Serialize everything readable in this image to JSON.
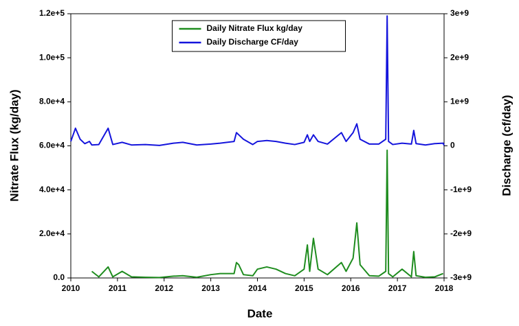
{
  "chart_data": {
    "type": "line",
    "xlabel": "Date",
    "ylabel": "Nitrate Flux (kg/day)",
    "y2label": "Discharge (cf/day)",
    "xlim": [
      2010,
      2018
    ],
    "xticks": [
      2010,
      2011,
      2012,
      2013,
      2014,
      2015,
      2016,
      2017,
      2018
    ],
    "ylim": [
      0,
      120000
    ],
    "yticks": [
      {
        "value": 0,
        "label": "0.0"
      },
      {
        "value": 20000,
        "label": "2.0e+4"
      },
      {
        "value": 40000,
        "label": "4.0e+4"
      },
      {
        "value": 60000,
        "label": "6.0e+4"
      },
      {
        "value": 80000,
        "label": "8.0e+4"
      },
      {
        "value": 100000,
        "label": "1.0e+5"
      },
      {
        "value": 120000,
        "label": "1.2e+5"
      }
    ],
    "y2lim": [
      -3000000000,
      3000000000
    ],
    "y2ticks": [
      {
        "value": -3000000000,
        "label": "-3e+9"
      },
      {
        "value": -2000000000,
        "label": "-2e+9"
      },
      {
        "value": -1000000000,
        "label": "-1e+9"
      },
      0,
      {
        "value": 1000000000,
        "label": "1e+9"
      },
      {
        "value": 2000000000,
        "label": "2e+9"
      },
      {
        "value": 3000000000,
        "label": "3e+9"
      }
    ],
    "legend": "upper center",
    "x": [
      2010.0,
      2010.1,
      2010.2,
      2010.3,
      2010.4,
      2010.45,
      2010.6,
      2010.8,
      2010.9,
      2011.1,
      2011.3,
      2011.6,
      2011.9,
      2012.2,
      2012.4,
      2012.7,
      2013.0,
      2013.2,
      2013.5,
      2013.55,
      2013.6,
      2013.7,
      2013.9,
      2014.0,
      2014.2,
      2014.4,
      2014.6,
      2014.8,
      2015.0,
      2015.07,
      2015.12,
      2015.2,
      2015.3,
      2015.5,
      2015.8,
      2015.9,
      2016.05,
      2016.13,
      2016.2,
      2016.4,
      2016.6,
      2016.75,
      2016.78,
      2016.81,
      2016.9,
      2017.1,
      2017.3,
      2017.35,
      2017.4,
      2017.6,
      2017.8,
      2017.98,
      2018.0
    ],
    "series": [
      {
        "name": "Daily Nitrate Flux kg/day",
        "color": "#1e8c1e",
        "values": [
          null,
          null,
          null,
          null,
          null,
          3000,
          500,
          5000,
          500,
          3000,
          500,
          300,
          200,
          800,
          1000,
          300,
          1500,
          2000,
          2000,
          7000,
          6000,
          1500,
          1000,
          4000,
          5000,
          4000,
          2000,
          1000,
          4000,
          15000,
          3000,
          18000,
          4000,
          1500,
          7000,
          3000,
          9000,
          25000,
          6000,
          1000,
          800,
          3000,
          58000,
          2000,
          500,
          4000,
          500,
          12000,
          1000,
          300,
          500,
          2000,
          null
        ]
      },
      {
        "name": "Daily Discharge CF/day",
        "color": "#1414dc",
        "axis": "y2",
        "values": [
          100000000,
          400000000,
          150000000,
          50000000,
          100000000,
          20000000,
          30000000,
          400000000,
          30000000,
          80000000,
          20000000,
          30000000,
          10000000,
          60000000,
          80000000,
          20000000,
          40000000,
          60000000,
          100000000,
          300000000,
          250000000,
          150000000,
          30000000,
          100000000,
          120000000,
          100000000,
          60000000,
          30000000,
          80000000,
          250000000,
          100000000,
          250000000,
          100000000,
          40000000,
          300000000,
          100000000,
          300000000,
          500000000,
          150000000,
          40000000,
          40000000,
          150000000,
          2950000000,
          100000000,
          30000000,
          60000000,
          40000000,
          350000000,
          50000000,
          20000000,
          50000000,
          60000000,
          10000000
        ]
      }
    ]
  }
}
